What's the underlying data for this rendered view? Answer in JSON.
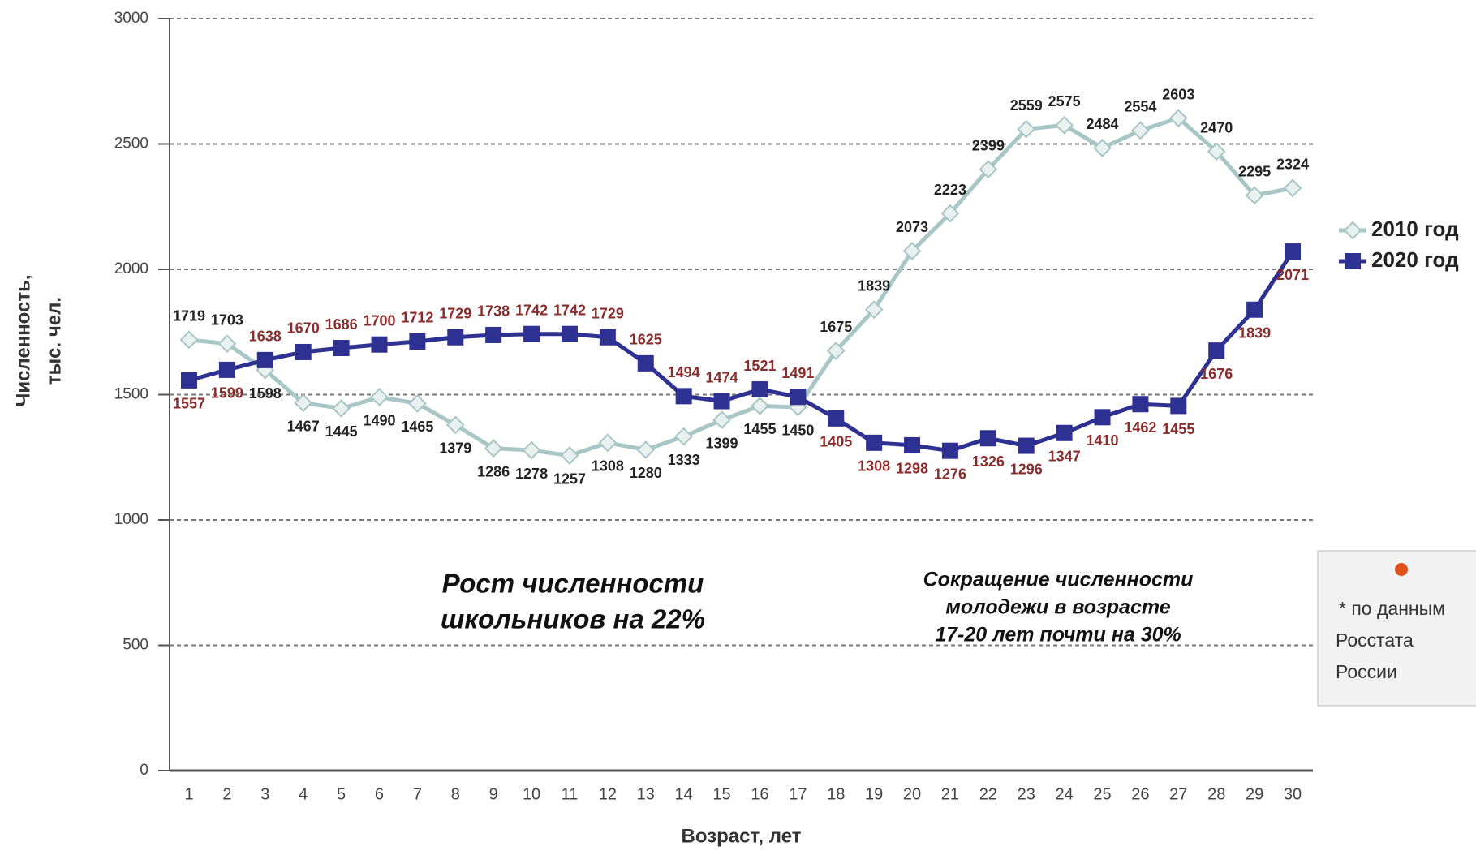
{
  "chart_data": {
    "type": "line",
    "x_label": "Возраст, лет",
    "y_label": [
      "Численность,",
      "тыс. чел."
    ],
    "categories": [
      1,
      2,
      3,
      4,
      5,
      6,
      7,
      8,
      9,
      10,
      11,
      12,
      13,
      14,
      15,
      16,
      17,
      18,
      19,
      20,
      21,
      22,
      23,
      24,
      25,
      26,
      27,
      28,
      29,
      30
    ],
    "series": [
      {
        "name": "2010 год",
        "color": "#a9c6c6",
        "label_color": "#222222",
        "marker": "diamond",
        "values": [
          1719,
          1703,
          1598,
          1467,
          1445,
          1490,
          1465,
          1379,
          1286,
          1278,
          1257,
          1308,
          1280,
          1333,
          1399,
          1455,
          1450,
          1675,
          1839,
          2073,
          2223,
          2399,
          2559,
          2575,
          2484,
          2554,
          2603,
          2470,
          2295,
          2324
        ]
      },
      {
        "name": "2020 год",
        "color": "#2e3192",
        "label_color": "#8b2c2c",
        "marker": "square",
        "values": [
          1557,
          1599,
          1638,
          1670,
          1686,
          1700,
          1712,
          1729,
          1738,
          1742,
          1742,
          1729,
          1625,
          1494,
          1474,
          1521,
          1491,
          1405,
          1308,
          1298,
          1276,
          1326,
          1296,
          1347,
          1410,
          1462,
          1455,
          1676,
          1839,
          2071
        ]
      }
    ],
    "ylim": [
      0,
      3000
    ],
    "yticks": [
      0,
      500,
      1000,
      1500,
      2000,
      2500,
      3000
    ],
    "grid": true,
    "legend": "right",
    "annotations": [
      {
        "lines": [
          "Рост численности",
          "школьников на 22%"
        ]
      },
      {
        "lines": [
          "Сокращение численности",
          "молодежи в возрасте",
          "17-20 лет почти на 30%"
        ]
      }
    ],
    "note": [
      "* по данным",
      "Росстата",
      "России"
    ]
  }
}
